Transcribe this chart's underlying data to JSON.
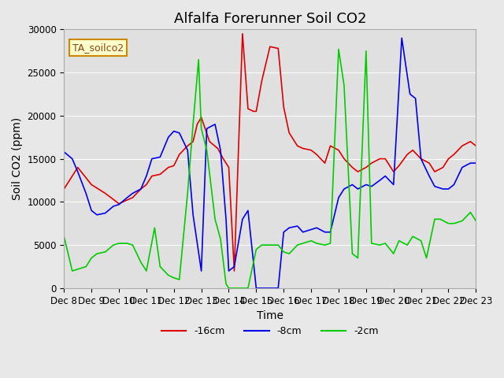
{
  "title": "Alfalfa Forerunner Soil CO2",
  "xlabel": "Time",
  "ylabel": "Soil CO2 (ppm)",
  "ylim": [
    0,
    30000
  ],
  "yticks": [
    0,
    5000,
    10000,
    15000,
    20000,
    25000,
    30000
  ],
  "xtick_labels": [
    "Dec 8",
    "Dec 9",
    "Dec 10",
    "Dec 11",
    "Dec 12",
    "Dec 13",
    "Dec 14",
    "Dec 15",
    "Dec 16",
    "Dec 17",
    "Dec 18",
    "Dec 19",
    "Dec 20",
    "Dec 21",
    "Dec 22",
    "Dec 23"
  ],
  "legend_label": "TA_soilco2",
  "legend_entries": [
    "-16cm",
    "-8cm",
    "-2cm"
  ],
  "line_colors": [
    "#dd0000",
    "#0000ee",
    "#00cc00"
  ],
  "background_color": "#e8e8e8",
  "plot_bg_color": "#e0e0e0",
  "grid_color": "#ffffff",
  "title_fontsize": 13,
  "axis_fontsize": 10,
  "tick_fontsize": 8.5,
  "red_x": [
    0,
    0.5,
    1.0,
    1.5,
    2.0,
    2.5,
    2.8,
    3.0,
    3.2,
    3.5,
    3.8,
    4.0,
    4.2,
    4.5,
    4.7,
    4.85,
    5.0,
    5.3,
    5.6,
    5.8,
    6.0,
    6.2,
    6.5,
    6.7,
    6.9,
    7.0,
    7.2,
    7.5,
    7.8,
    8.0,
    8.2,
    8.5,
    8.7,
    9.0,
    9.2,
    9.5,
    9.7,
    10.0,
    10.2,
    10.5,
    10.7,
    11.0,
    11.2,
    11.5,
    11.7,
    12.0,
    12.2,
    12.5,
    12.7,
    13.0,
    13.3,
    13.5,
    13.8,
    14.0,
    14.2,
    14.5,
    14.8,
    15.0
  ],
  "red_y": [
    11500,
    14000,
    12000,
    11000,
    9800,
    10500,
    11500,
    12000,
    13000,
    13200,
    14000,
    14200,
    15500,
    16500,
    17000,
    19000,
    19800,
    17000,
    16200,
    15000,
    14000,
    2000,
    29500,
    20800,
    20500,
    20500,
    24000,
    28000,
    27800,
    21000,
    18000,
    16500,
    16200,
    16000,
    15500,
    14500,
    16500,
    16000,
    15000,
    14000,
    13500,
    14000,
    14500,
    15000,
    15000,
    13500,
    14200,
    15500,
    16000,
    15000,
    14500,
    13500,
    14000,
    15000,
    15500,
    16500,
    17000,
    16500
  ],
  "blue_x": [
    0,
    0.3,
    0.5,
    0.8,
    1.0,
    1.2,
    1.5,
    1.8,
    2.0,
    2.3,
    2.5,
    2.8,
    3.0,
    3.2,
    3.5,
    3.8,
    4.0,
    4.2,
    4.5,
    4.7,
    5.0,
    5.2,
    5.5,
    5.7,
    5.9,
    6.0,
    6.2,
    6.5,
    6.7,
    7.0,
    7.2,
    7.5,
    7.8,
    8.0,
    8.2,
    8.5,
    8.7,
    9.0,
    9.2,
    9.5,
    9.7,
    10.0,
    10.2,
    10.5,
    10.7,
    11.0,
    11.2,
    11.5,
    11.7,
    12.0,
    12.3,
    12.6,
    12.8,
    13.0,
    13.3,
    13.5,
    13.8,
    14.0,
    14.2,
    14.5,
    14.8,
    15.0
  ],
  "blue_y": [
    15800,
    15000,
    13500,
    11000,
    9000,
    8500,
    8700,
    9500,
    9700,
    10500,
    11000,
    11500,
    13000,
    15000,
    15200,
    17500,
    18200,
    18000,
    16000,
    8500,
    2000,
    18500,
    19000,
    16000,
    8000,
    2000,
    2500,
    8000,
    9000,
    0,
    0,
    0,
    0,
    6500,
    7000,
    7200,
    6500,
    6800,
    7000,
    6500,
    6500,
    10500,
    11500,
    12000,
    11500,
    12000,
    11800,
    12500,
    13000,
    12000,
    29000,
    22500,
    22000,
    15000,
    13000,
    11800,
    11500,
    11500,
    12000,
    14000,
    14500,
    14500
  ],
  "green_x": [
    0,
    0.3,
    0.5,
    0.8,
    1.0,
    1.2,
    1.5,
    1.8,
    2.0,
    2.3,
    2.5,
    2.8,
    3.0,
    3.3,
    3.5,
    3.8,
    4.0,
    4.2,
    4.5,
    4.7,
    4.9,
    5.0,
    5.2,
    5.5,
    5.7,
    5.9,
    6.0,
    6.1,
    6.3,
    6.5,
    6.7,
    7.0,
    7.2,
    7.5,
    7.8,
    8.0,
    8.2,
    8.5,
    8.7,
    9.0,
    9.2,
    9.5,
    9.7,
    10.0,
    10.2,
    10.5,
    10.7,
    11.0,
    11.2,
    11.5,
    11.7,
    12.0,
    12.2,
    12.5,
    12.7,
    13.0,
    13.2,
    13.5,
    13.7,
    14.0,
    14.2,
    14.5,
    14.8,
    15.0
  ],
  "green_y": [
    6000,
    2000,
    2200,
    2500,
    3500,
    4000,
    4200,
    5000,
    5200,
    5200,
    5000,
    3000,
    2000,
    7000,
    2500,
    1500,
    1200,
    1000,
    11000,
    19000,
    26500,
    18500,
    16000,
    8000,
    5700,
    500,
    0,
    0,
    0,
    0,
    0,
    4500,
    5000,
    5000,
    5000,
    4200,
    4000,
    5000,
    5200,
    5500,
    5200,
    5000,
    5200,
    27700,
    23500,
    4000,
    3500,
    27500,
    5200,
    5000,
    5200,
    4000,
    5500,
    5000,
    6000,
    5500,
    3500,
    8000,
    8000,
    7500,
    7500,
    7800,
    8800,
    7800
  ]
}
